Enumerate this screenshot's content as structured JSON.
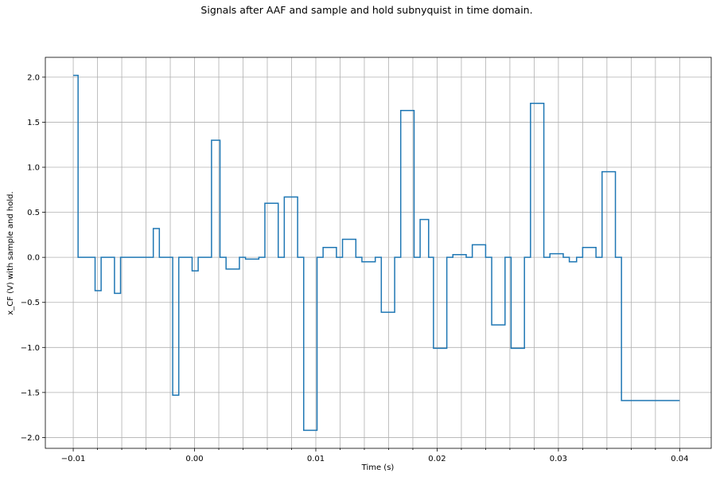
{
  "chart_data": {
    "type": "line",
    "drawstyle": "steps-post",
    "title": "Signals after AAF and sample and hold subnyquist in time domain.",
    "xlabel": "Time (s)",
    "ylabel": "x_CF (V) with sample and hold.",
    "xlim": [
      -0.0123,
      0.0426
    ],
    "ylim": [
      -2.12,
      2.22
    ],
    "grid": true,
    "x_ticks": [
      -0.01,
      0.0,
      0.01,
      0.02,
      0.03,
      0.04
    ],
    "x_tick_labels": [
      "−0.01",
      "0.00",
      "0.01",
      "0.02",
      "0.03",
      "0.04"
    ],
    "x_minor_ticks": [
      -0.008,
      -0.006,
      -0.004,
      -0.002,
      0.002,
      0.004,
      0.006,
      0.008,
      0.012,
      0.014,
      0.016,
      0.018,
      0.022,
      0.024,
      0.026,
      0.028,
      0.032,
      0.034,
      0.036,
      0.038
    ],
    "y_ticks": [
      -2.0,
      -1.5,
      -1.0,
      -0.5,
      0.0,
      0.5,
      1.0,
      1.5,
      2.0
    ],
    "y_tick_labels": [
      "−2.0",
      "−1.5",
      "−1.0",
      "−0.5",
      "0.0",
      "0.5",
      "1.0",
      "1.5",
      "2.0"
    ],
    "color": "#1f77b4",
    "series": [
      {
        "x": [
          -0.01,
          -0.0096,
          -0.0082,
          -0.0077,
          -0.0066,
          -0.0061,
          -0.005,
          -0.0045,
          -0.0034,
          -0.0029,
          -0.0018,
          -0.0013,
          -0.0002,
          0.0003,
          0.0014,
          0.0021,
          0.0026,
          0.0037,
          0.0042,
          0.0053,
          0.0058,
          0.0069,
          0.0074,
          0.0085,
          0.009,
          0.0101,
          0.0106,
          0.0117,
          0.0122,
          0.0133,
          0.0138,
          0.0149,
          0.0154,
          0.0165,
          0.017,
          0.0181,
          0.0186,
          0.0193,
          0.0197,
          0.0208,
          0.0213,
          0.0224,
          0.0229,
          0.024,
          0.0245,
          0.0256,
          0.0261,
          0.0272,
          0.0277,
          0.0288,
          0.0293,
          0.0304,
          0.0309,
          0.0315,
          0.032,
          0.0331,
          0.0336,
          0.0347,
          0.0352,
          0.0363,
          0.0368,
          0.0379,
          0.0384,
          0.0395,
          0.04
        ],
        "y": [
          2.02,
          0.0,
          -0.37,
          0.0,
          -0.4,
          0.0,
          0.0,
          0.0,
          0.32,
          0.0,
          -1.53,
          0.0,
          -0.15,
          0.0,
          1.3,
          0.0,
          -0.13,
          0.0,
          -0.02,
          0.0,
          0.6,
          0.0,
          0.67,
          0.0,
          -1.92,
          0.0,
          0.11,
          0.0,
          0.2,
          0.0,
          -0.05,
          0.0,
          -0.61,
          0.0,
          1.63,
          0.0,
          0.42,
          0.0,
          -1.01,
          0.0,
          0.03,
          0.0,
          0.14,
          0.0,
          -0.75,
          0.0,
          -1.01,
          0.0,
          1.71,
          0.0,
          0.04,
          0.0,
          -0.05,
          0.0,
          0.11,
          0.0,
          0.95,
          0.0,
          -1.59,
          -1.59,
          -1.59,
          -1.59,
          -1.59,
          -1.59,
          -1.59
        ]
      }
    ]
  }
}
